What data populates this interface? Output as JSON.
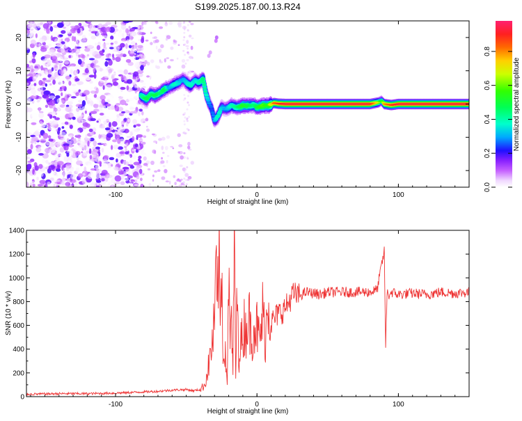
{
  "title": "S199.2025.187.00.13.R24",
  "chart_data": [
    {
      "type": "heatmap",
      "xlabel": "Height of straight line (km)",
      "ylabel": "Frequency (Hz)",
      "xlim": [
        -163,
        150
      ],
      "ylim": [
        -25,
        25
      ],
      "xticks": [
        -100,
        0,
        100
      ],
      "yticks": [
        -20,
        -10,
        0,
        10,
        20
      ],
      "colorbar": {
        "label": "Normalized spectral amplitude",
        "range": [
          0,
          0.98
        ],
        "ticks": [
          0.0,
          0.2,
          0.4,
          0.6,
          0.8
        ],
        "tick_labels": [
          "0.0",
          "0.2",
          "0.4",
          "0.6",
          "0.8"
        ],
        "colormap": "gist_rainbow_r (magenta-purple-blue-cyan-green-yellow-red)",
        "colors": [
          "#ffffff",
          "#ff33cc",
          "#cc33ff",
          "#7a1ff0",
          "#0000ff",
          "#00b4ff",
          "#00ffb4",
          "#00ff33",
          "#a0ff00",
          "#ffff00",
          "#ffa000",
          "#ff2020",
          "#ff2060"
        ]
      },
      "ridge": {
        "description": "dominant spectral peak frequency (Hz) vs height (km)",
        "x": [
          -82,
          -78,
          -75,
          -72,
          -68,
          -65,
          -62,
          -58,
          -55,
          -52,
          -50,
          -47,
          -44,
          -41,
          -38,
          -36,
          -34,
          -32,
          -30,
          -28,
          -25,
          -22,
          -18,
          -14,
          -10,
          -6,
          -2,
          0,
          4,
          8,
          12,
          15,
          20,
          40,
          60,
          80,
          86,
          88,
          90,
          95,
          100,
          120,
          150
        ],
        "y": [
          2.5,
          1.5,
          3.0,
          2.5,
          3.5,
          4.5,
          5.0,
          6.0,
          6.5,
          7.5,
          6.5,
          5.5,
          7.0,
          6.5,
          7.5,
          3.0,
          0.5,
          -1.5,
          -5.0,
          -4.0,
          -1.0,
          -1.5,
          -0.5,
          -1.0,
          -0.5,
          -0.5,
          -0.3,
          -1.0,
          -0.5,
          -0.5,
          0.3,
          0.1,
          0,
          0,
          0,
          0,
          0.5,
          1.0,
          0,
          -0.3,
          0,
          0,
          0
        ],
        "amplitude": [
          0.4,
          0.5,
          0.45,
          0.5,
          0.45,
          0.5,
          0.3,
          0.4,
          0.35,
          0.3,
          0.35,
          0.4,
          0.35,
          0.4,
          0.45,
          0.4,
          0.3,
          0.25,
          0.3,
          0.4,
          0.35,
          0.3,
          0.4,
          0.45,
          0.55,
          0.5,
          0.45,
          0.5,
          0.6,
          0.55,
          0.85,
          0.9,
          0.95,
          0.95,
          0.95,
          0.95,
          0.7,
          0.5,
          0.8,
          0.9,
          0.95,
          0.95,
          0.95
        ]
      },
      "noise_region": {
        "description": "broadband low-amplitude noise blobs",
        "x_range": [
          -163,
          -80
        ],
        "sparse_x_range": [
          -80,
          -45
        ],
        "amplitude_range": [
          0.0,
          0.2
        ]
      }
    },
    {
      "type": "line",
      "xlabel": "Height of straight line (km)",
      "ylabel": "SNR (10 * v/v)",
      "xlim": [
        -163,
        150
      ],
      "ylim": [
        0,
        1400
      ],
      "xticks": [
        -100,
        0,
        100
      ],
      "yticks": [
        0,
        200,
        400,
        600,
        800,
        1000,
        1200,
        1400
      ],
      "color": "#ee3333",
      "series": [
        {
          "x": [
            -163,
            -140,
            -120,
            -100,
            -90,
            -80,
            -70,
            -60,
            -50,
            -45,
            -40,
            -37,
            -35,
            -33,
            -31,
            -30,
            -29,
            -28,
            -27,
            -26,
            -25,
            -24,
            -23,
            -22,
            -21,
            -20,
            -19,
            -18,
            -17,
            -16,
            -15,
            -14,
            -13,
            -12,
            -11,
            -10,
            -9,
            -8,
            -6,
            -4,
            -2,
            0,
            2,
            4,
            6,
            8,
            10,
            12,
            15,
            18,
            22,
            25,
            30,
            35,
            40,
            45,
            50,
            60,
            70,
            80,
            85,
            88,
            90,
            91,
            92,
            93,
            95,
            100,
            110,
            120,
            130,
            140,
            150
          ],
          "y": [
            20,
            25,
            25,
            30,
            35,
            40,
            45,
            55,
            60,
            50,
            60,
            100,
            200,
            350,
            500,
            650,
            1000,
            700,
            1330,
            550,
            1220,
            300,
            480,
            250,
            150,
            1000,
            400,
            700,
            150,
            1400,
            150,
            900,
            300,
            500,
            450,
            500,
            600,
            550,
            700,
            500,
            620,
            580,
            450,
            700,
            500,
            850,
            620,
            650,
            700,
            720,
            780,
            860,
            850,
            880,
            870,
            860,
            880,
            880,
            880,
            880,
            900,
            1100,
            1220,
            430,
            880,
            850,
            880,
            860,
            870,
            860,
            880,
            870,
            880
          ]
        }
      ]
    }
  ]
}
